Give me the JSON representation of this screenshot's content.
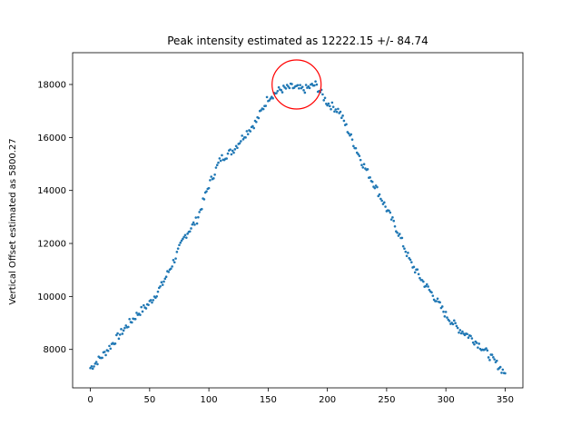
{
  "chart_data": {
    "type": "scatter",
    "title": "Peak intensity estimated as 12222.15 +/- 84.74",
    "xlabel": "",
    "ylabel": "Vertical Offset estimated as 5800.27",
    "xlim": [
      -15,
      365
    ],
    "ylim": [
      6550,
      19200
    ],
    "xticks": [
      0,
      50,
      100,
      150,
      200,
      250,
      300,
      350
    ],
    "yticks": [
      8000,
      10000,
      12000,
      14000,
      16000,
      18000
    ],
    "grid": false,
    "marker_color": "#1f77b4",
    "annotation": {
      "shape": "circle",
      "center": [
        174,
        18000
      ],
      "color": "#ff0000"
    },
    "series": [
      {
        "x": [
          0,
          10,
          20,
          30,
          40,
          50,
          60,
          70,
          80,
          90,
          100,
          110,
          120,
          130,
          140,
          150,
          160,
          170,
          180,
          190,
          200,
          210,
          220,
          230,
          240,
          250,
          260,
          270,
          280,
          290,
          300,
          310,
          320,
          330,
          340,
          350
        ],
        "y": [
          7300,
          7750,
          8300,
          8850,
          9350,
          9750,
          10400,
          11300,
          12300,
          12900,
          14200,
          15200,
          15500,
          16100,
          16600,
          17500,
          17800,
          17900,
          17800,
          18000,
          17300,
          17000,
          16000,
          15000,
          14200,
          13300,
          12400,
          11300,
          10600,
          10000,
          9300,
          8800,
          8500,
          8100,
          7600,
          7100
        ]
      }
    ]
  }
}
